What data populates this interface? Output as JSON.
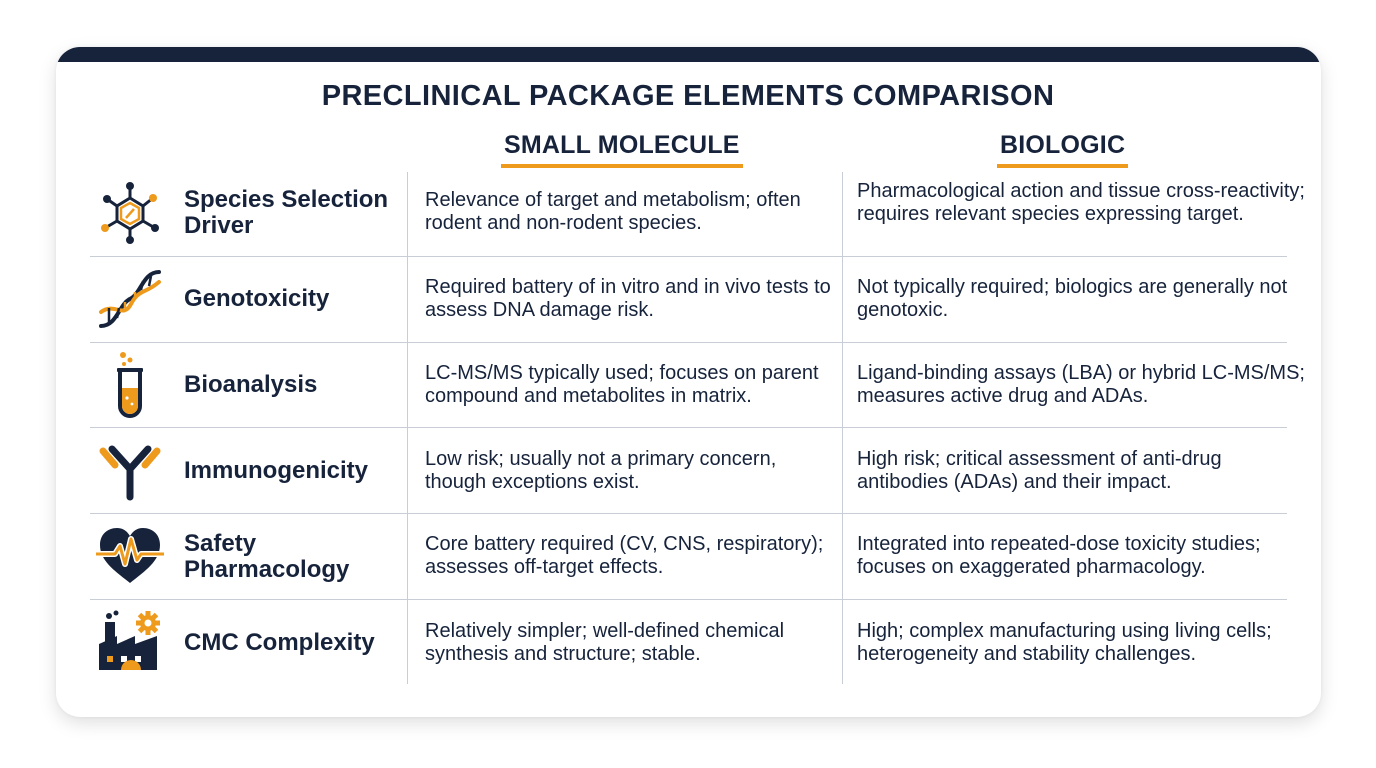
{
  "title": "PRECLINICAL PACKAGE ELEMENTS COMPARISON",
  "columns": {
    "small_molecule": "SMALL MOLECULE",
    "biologic": "BIOLOGIC"
  },
  "colors": {
    "navy": "#16233b",
    "accent_orange": "#ee9a1d",
    "divider": "#c9ced6"
  },
  "rows": [
    {
      "icon": "molecule-icon",
      "label": "Species Selection Driver",
      "small_molecule": "Relevance of target and metabolism; often rodent and non-rodent species.",
      "biologic": "Pharmacological action and tissue cross-reactivity; requires relevant species expressing target."
    },
    {
      "icon": "dna-icon",
      "label": "Genotoxicity",
      "small_molecule": "Required battery of in vitro and in vivo tests to assess DNA damage risk.",
      "biologic": "Not typically required; biologics are generally not genotoxic."
    },
    {
      "icon": "test-tube-icon",
      "label": "Bioanalysis",
      "small_molecule": "LC-MS/MS typically used; focuses on parent compound and metabolites in matrix.",
      "biologic": "Ligand-binding assays (LBA) or hybrid LC-MS/MS; measures active drug and ADAs."
    },
    {
      "icon": "antibody-icon",
      "label": "Immunogenicity",
      "small_molecule": "Low risk; usually not a primary concern, though exceptions exist.",
      "biologic": "High risk; critical assessment of anti-drug antibodies (ADAs) and their impact."
    },
    {
      "icon": "heart-pulse-icon",
      "label": "Safety Pharmacology",
      "small_molecule": "Core battery required (CV, CNS, respiratory); assesses off-target effects.",
      "biologic": "Integrated into repeated-dose toxicity studies; focuses on exaggerated pharmacology."
    },
    {
      "icon": "factory-gear-icon",
      "label": "CMC Complexity",
      "small_molecule": "Relatively simpler; well-defined chemical synthesis and structure; stable.",
      "biologic": "High; complex manufacturing using living cells; heterogeneity and stability challenges."
    }
  ]
}
